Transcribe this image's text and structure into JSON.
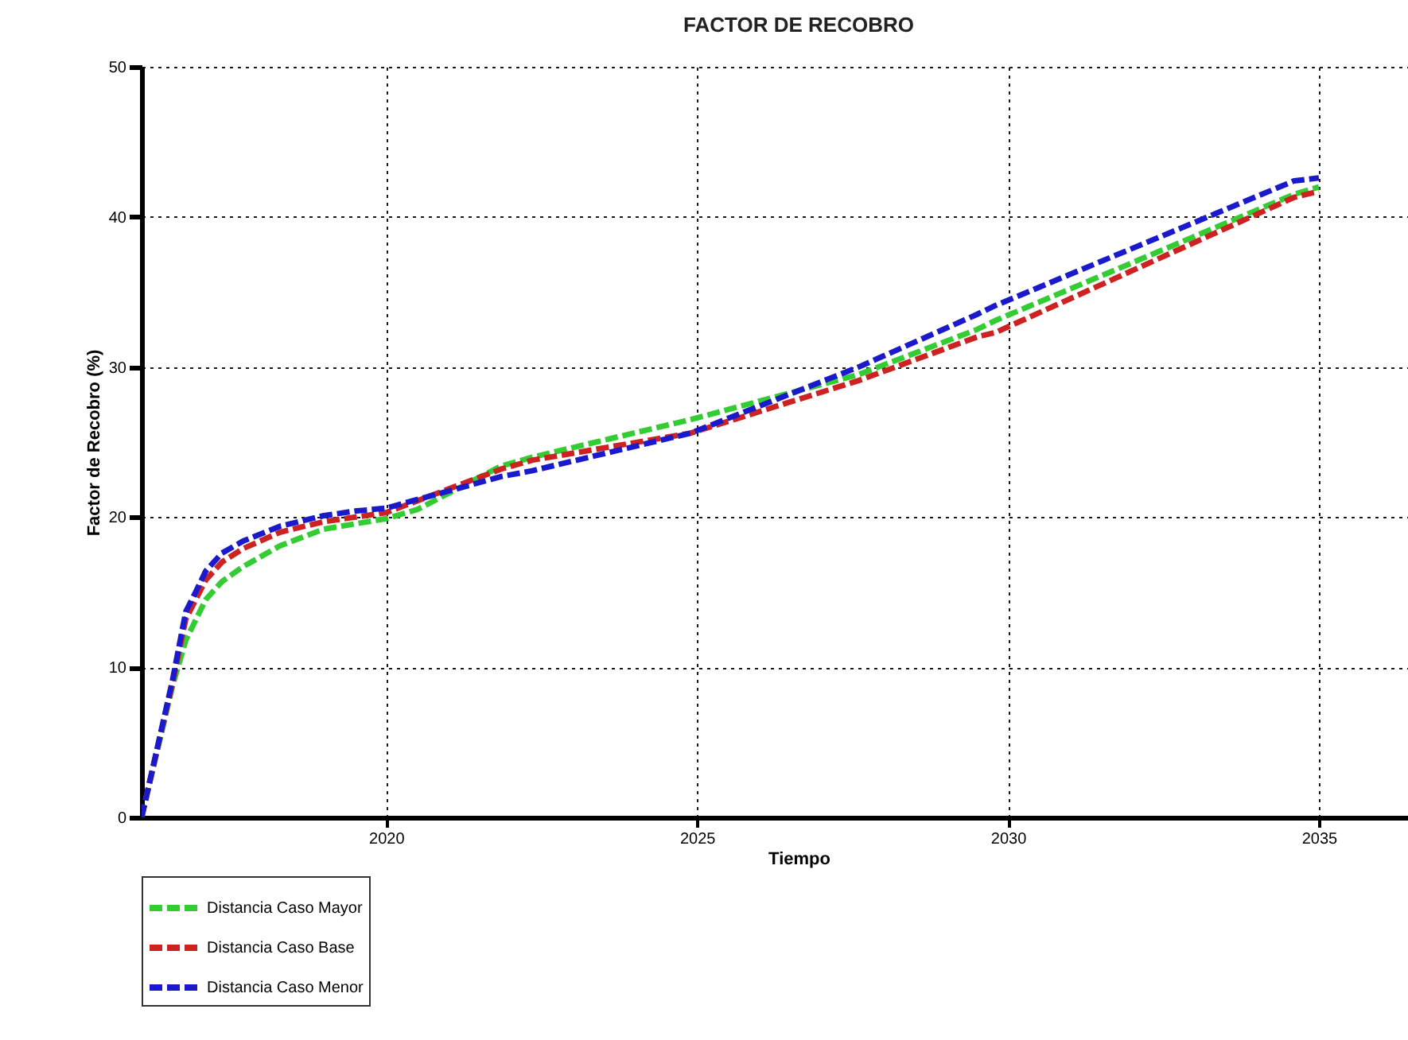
{
  "chart_data": {
    "type": "line",
    "title": "FACTOR DE RECOBRO",
    "xlabel": "Tiempo",
    "ylabel": "Factor de Recobro (%)",
    "xlim": [
      2016.07,
      2037.2
    ],
    "xticks": [
      2020,
      2025,
      2030,
      2035
    ],
    "ylim": [
      0,
      50
    ],
    "yticks": [
      0,
      10,
      20,
      30,
      40,
      50
    ],
    "grid": true,
    "legend": "bottom",
    "line_style": "dashed",
    "marker": "none",
    "series": [
      {
        "name": "Distancia Caso Mayor",
        "color": "#33cc33",
        "x": [
          2016.07,
          2016.57,
          2016.78,
          2017.1,
          2017.36,
          2017.7,
          2018.3,
          2019.0,
          2020.0,
          2020.5,
          2021.85,
          2022.36,
          2024.9,
          2027.6,
          2029.5,
          2029.8,
          2034.6,
          2035.0
        ],
        "values": [
          0,
          8.8,
          11.8,
          14.5,
          15.7,
          16.7,
          18.1,
          19.2,
          19.9,
          20.5,
          23.4,
          24.0,
          26.5,
          29.5,
          32.5,
          33.1,
          41.5,
          42.0
        ]
      },
      {
        "name": "Distancia Caso Base",
        "color": "#cc2222",
        "x": [
          2016.07,
          2016.57,
          2016.78,
          2017.1,
          2017.36,
          2017.7,
          2018.3,
          2019.0,
          2020.0,
          2021.85,
          2022.36,
          2024.9,
          2027.6,
          2029.5,
          2029.8,
          2034.6,
          2035.0
        ],
        "values": [
          0,
          9.0,
          13.2,
          15.8,
          17.0,
          17.9,
          19.0,
          19.7,
          20.3,
          23.2,
          23.8,
          25.6,
          29.1,
          32.0,
          32.3,
          41.3,
          41.7
        ]
      },
      {
        "name": "Distancia Caso Menor",
        "color": "#1a1acc",
        "x": [
          2016.07,
          2016.57,
          2016.78,
          2016.95,
          2017.1,
          2017.36,
          2017.7,
          2018.3,
          2019.0,
          2019.5,
          2020.0,
          2021.85,
          2022.36,
          2024.9,
          2027.6,
          2029.5,
          2029.8,
          2034.6,
          2035.0
        ],
        "values": [
          0,
          9.2,
          13.7,
          15.1,
          16.4,
          17.6,
          18.4,
          19.4,
          20.1,
          20.4,
          20.6,
          22.7,
          23.1,
          25.6,
          30.0,
          33.5,
          34.1,
          42.4,
          42.6
        ]
      }
    ]
  }
}
